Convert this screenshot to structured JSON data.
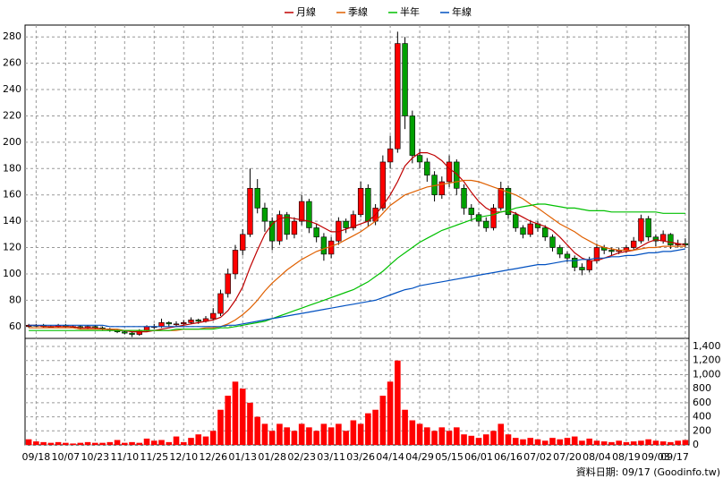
{
  "chart_data": [
    {
      "type": "candlestick",
      "categories": [
        null,
        "09/18",
        null,
        null,
        null,
        "10/07",
        null,
        null,
        null,
        "10/23",
        null,
        null,
        null,
        "11/10",
        null,
        null,
        null,
        "11/25",
        null,
        null,
        null,
        "12/10",
        null,
        null,
        null,
        "12/26",
        null,
        null,
        null,
        "01/13",
        null,
        null,
        null,
        "01/28",
        null,
        null,
        null,
        "02/23",
        null,
        null,
        null,
        "03/11",
        null,
        null,
        null,
        "03/26",
        null,
        null,
        null,
        "04/14",
        null,
        null,
        null,
        "04/29",
        null,
        null,
        null,
        "05/15",
        null,
        null,
        null,
        "06/01",
        null,
        null,
        null,
        "06/16",
        null,
        null,
        null,
        "07/02",
        null,
        null,
        null,
        "07/20",
        null,
        null,
        null,
        "08/04",
        null,
        null,
        null,
        "08/19",
        null,
        null,
        null,
        "09/03",
        null,
        null,
        null,
        "09/17"
      ],
      "candles": [
        [
          60,
          62,
          59,
          61
        ],
        [
          61,
          62,
          60,
          61
        ],
        [
          61,
          62,
          59,
          60
        ],
        [
          60,
          61,
          59,
          60
        ],
        [
          60,
          62,
          59,
          61
        ],
        [
          61,
          62,
          59,
          60
        ],
        [
          60,
          61,
          59,
          60
        ],
        [
          60,
          61,
          58,
          59
        ],
        [
          59,
          61,
          58,
          60
        ],
        [
          60,
          61,
          58,
          59
        ],
        [
          59,
          60,
          57,
          58
        ],
        [
          58,
          59,
          56,
          57
        ],
        [
          57,
          58,
          55,
          56
        ],
        [
          56,
          57,
          54,
          55
        ],
        [
          55,
          56,
          52,
          54
        ],
        [
          54,
          58,
          53,
          57
        ],
        [
          57,
          61,
          56,
          60
        ],
        [
          60,
          62,
          58,
          60
        ],
        [
          60,
          66,
          59,
          63
        ],
        [
          63,
          64,
          60,
          62
        ],
        [
          62,
          64,
          60,
          62
        ],
        [
          62,
          65,
          61,
          63
        ],
        [
          63,
          67,
          62,
          65
        ],
        [
          65,
          66,
          62,
          64
        ],
        [
          64,
          68,
          63,
          66
        ],
        [
          66,
          74,
          65,
          70
        ],
        [
          70,
          88,
          68,
          85
        ],
        [
          85,
          104,
          82,
          100
        ],
        [
          100,
          122,
          96,
          118
        ],
        [
          118,
          134,
          114,
          130
        ],
        [
          130,
          180,
          128,
          165
        ],
        [
          165,
          172,
          146,
          150
        ],
        [
          150,
          154,
          132,
          140
        ],
        [
          140,
          143,
          118,
          125
        ],
        [
          125,
          148,
          122,
          145
        ],
        [
          145,
          147,
          126,
          130
        ],
        [
          130,
          143,
          127,
          140
        ],
        [
          140,
          160,
          137,
          155
        ],
        [
          155,
          157,
          131,
          135
        ],
        [
          135,
          138,
          124,
          128
        ],
        [
          128,
          131,
          110,
          115
        ],
        [
          115,
          128,
          112,
          125
        ],
        [
          125,
          143,
          122,
          140
        ],
        [
          140,
          142,
          131,
          135
        ],
        [
          135,
          148,
          133,
          145
        ],
        [
          145,
          170,
          143,
          165
        ],
        [
          165,
          168,
          136,
          140
        ],
        [
          140,
          153,
          137,
          150
        ],
        [
          150,
          190,
          148,
          185
        ],
        [
          185,
          205,
          180,
          195
        ],
        [
          195,
          284,
          192,
          275
        ],
        [
          275,
          280,
          210,
          220
        ],
        [
          220,
          224,
          184,
          190
        ],
        [
          190,
          195,
          180,
          185
        ],
        [
          185,
          188,
          170,
          175
        ],
        [
          175,
          178,
          155,
          160
        ],
        [
          160,
          174,
          157,
          170
        ],
        [
          170,
          190,
          166,
          185
        ],
        [
          185,
          187,
          160,
          165
        ],
        [
          165,
          168,
          145,
          150
        ],
        [
          150,
          153,
          140,
          145
        ],
        [
          145,
          147,
          136,
          140
        ],
        [
          140,
          143,
          132,
          135
        ],
        [
          135,
          153,
          133,
          150
        ],
        [
          150,
          170,
          148,
          165
        ],
        [
          165,
          167,
          142,
          145
        ],
        [
          145,
          147,
          132,
          135
        ],
        [
          135,
          137,
          127,
          130
        ],
        [
          130,
          141,
          128,
          138
        ],
        [
          138,
          140,
          132,
          135
        ],
        [
          135,
          137,
          125,
          128
        ],
        [
          128,
          130,
          117,
          120
        ],
        [
          120,
          122,
          112,
          115
        ],
        [
          115,
          117,
          109,
          112
        ],
        [
          112,
          114,
          102,
          105
        ],
        [
          105,
          108,
          99,
          103
        ],
        [
          103,
          113,
          101,
          110
        ],
        [
          110,
          123,
          108,
          120
        ],
        [
          120,
          122,
          115,
          118
        ],
        [
          118,
          120,
          114,
          117
        ],
        [
          117,
          120,
          115,
          118
        ],
        [
          118,
          122,
          116,
          120
        ],
        [
          120,
          128,
          118,
          125
        ],
        [
          125,
          145,
          123,
          142
        ],
        [
          142,
          144,
          125,
          128
        ],
        [
          128,
          130,
          121,
          125
        ],
        [
          125,
          133,
          123,
          130
        ],
        [
          130,
          131,
          119,
          122
        ],
        [
          122,
          126,
          120,
          123
        ],
        [
          123,
          127,
          120,
          122
        ]
      ],
      "up_color": "#ff0000",
      "down_color": "#00a000",
      "series": [
        {
          "name": "月線",
          "color": "#c00000",
          "values": [
            61,
            61,
            60,
            60,
            60,
            60,
            60,
            59,
            59,
            59,
            58,
            58,
            57,
            57,
            56,
            56,
            56,
            57,
            58,
            59,
            60,
            61,
            62,
            63,
            64,
            65,
            67,
            72,
            80,
            90,
            105,
            118,
            130,
            138,
            142,
            143,
            142,
            141,
            140,
            138,
            135,
            132,
            132,
            134,
            136,
            138,
            140,
            145,
            152,
            160,
            170,
            182,
            188,
            192,
            192,
            190,
            186,
            180,
            176,
            170,
            162,
            155,
            150,
            147,
            147,
            148,
            146,
            143,
            140,
            138,
            136,
            133,
            128,
            122,
            116,
            112,
            110,
            110,
            112,
            114,
            116,
            117,
            118,
            121,
            124,
            126,
            125,
            124,
            123,
            122
          ]
        },
        {
          "name": "季線",
          "color": "#e06000",
          "values": [
            59,
            59,
            59,
            59,
            59,
            59,
            59,
            58,
            58,
            58,
            58,
            58,
            58,
            57,
            57,
            57,
            57,
            57,
            57,
            57,
            57,
            58,
            58,
            58,
            59,
            59,
            60,
            62,
            65,
            69,
            74,
            80,
            87,
            93,
            98,
            103,
            107,
            111,
            114,
            117,
            119,
            121,
            123,
            126,
            129,
            132,
            136,
            140,
            146,
            152,
            156,
            160,
            162,
            164,
            166,
            167,
            168,
            169,
            170,
            171,
            171,
            170,
            168,
            166,
            164,
            162,
            160,
            157,
            153,
            150,
            146,
            142,
            138,
            135,
            132,
            128,
            125,
            122,
            120,
            119,
            118,
            118,
            118,
            119,
            120,
            120,
            121,
            121,
            121,
            121
          ]
        },
        {
          "name": "半年",
          "color": "#00c000",
          "values": [
            57,
            57,
            57,
            57,
            57,
            57,
            57,
            57,
            57,
            57,
            57,
            57,
            57,
            57,
            57,
            57,
            57,
            57,
            57,
            57,
            58,
            58,
            58,
            58,
            58,
            58,
            59,
            59,
            60,
            61,
            62,
            63,
            64,
            66,
            68,
            70,
            72,
            74,
            76,
            78,
            80,
            82,
            84,
            86,
            88,
            91,
            94,
            98,
            102,
            107,
            112,
            116,
            120,
            124,
            127,
            130,
            133,
            135,
            137,
            139,
            141,
            143,
            144,
            145,
            147,
            148,
            150,
            151,
            152,
            153,
            153,
            152,
            151,
            150,
            150,
            149,
            148,
            148,
            148,
            147,
            147,
            147,
            147,
            147,
            147,
            147,
            146,
            146,
            146,
            146
          ]
        },
        {
          "name": "年線",
          "color": "#0050c0",
          "values": [
            61,
            61,
            61,
            61,
            61,
            61,
            61,
            61,
            61,
            61,
            61,
            60,
            60,
            60,
            60,
            60,
            60,
            60,
            60,
            60,
            60,
            60,
            60,
            60,
            60,
            60,
            60,
            61,
            61,
            62,
            63,
            64,
            65,
            66,
            67,
            68,
            69,
            70,
            71,
            72,
            73,
            74,
            75,
            76,
            77,
            78,
            79,
            80,
            82,
            84,
            86,
            88,
            89,
            91,
            92,
            93,
            94,
            95,
            96,
            97,
            98,
            99,
            100,
            101,
            102,
            103,
            104,
            105,
            106,
            107,
            107,
            108,
            109,
            110,
            110,
            111,
            111,
            112,
            112,
            113,
            113,
            114,
            114,
            115,
            116,
            116,
            117,
            117,
            118,
            119
          ]
        }
      ],
      "ylim": [
        51,
        289
      ],
      "yticks": [
        60,
        80,
        100,
        120,
        140,
        160,
        180,
        200,
        220,
        240,
        260,
        280
      ],
      "grid": true
    },
    {
      "type": "bar",
      "color": "#ff0000",
      "values": [
        80,
        50,
        40,
        30,
        40,
        30,
        20,
        30,
        40,
        30,
        30,
        40,
        70,
        30,
        40,
        30,
        90,
        60,
        70,
        40,
        120,
        40,
        100,
        150,
        120,
        200,
        500,
        700,
        900,
        800,
        600,
        400,
        300,
        200,
        300,
        250,
        200,
        300,
        250,
        200,
        300,
        250,
        300,
        200,
        350,
        300,
        450,
        500,
        700,
        900,
        1200,
        500,
        350,
        300,
        250,
        200,
        250,
        200,
        250,
        150,
        130,
        100,
        150,
        200,
        300,
        150,
        100,
        80,
        100,
        80,
        60,
        100,
        80,
        100,
        120,
        60,
        90,
        60,
        50,
        40,
        60,
        40,
        50,
        60,
        80,
        60,
        50,
        40,
        60,
        70
      ],
      "ylim": [
        0,
        1515
      ],
      "yticks": [
        0,
        200,
        400,
        600,
        800,
        {
          "value": 1000,
          "label": "1,000"
        },
        {
          "value": 1200,
          "label": "1,200"
        },
        {
          "value": 1400,
          "label": "1,400"
        }
      ],
      "grid": true
    }
  ],
  "footer": "資料日期: 09/17 (Goodinfo.tw)"
}
